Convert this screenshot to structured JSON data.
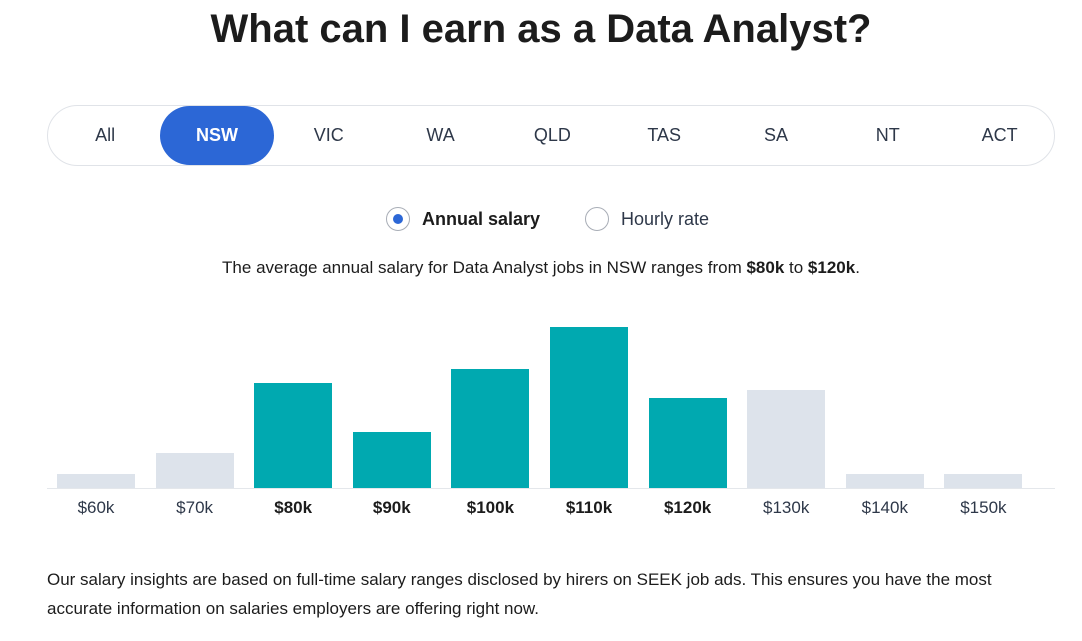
{
  "title": "What can I earn as a Data Analyst?",
  "tabs": [
    {
      "label": "All",
      "active": false
    },
    {
      "label": "NSW",
      "active": true
    },
    {
      "label": "VIC",
      "active": false
    },
    {
      "label": "WA",
      "active": false
    },
    {
      "label": "QLD",
      "active": false
    },
    {
      "label": "TAS",
      "active": false
    },
    {
      "label": "SA",
      "active": false
    },
    {
      "label": "NT",
      "active": false
    },
    {
      "label": "ACT",
      "active": false
    }
  ],
  "rate_options": {
    "annual_label": "Annual salary",
    "annual_selected": true,
    "hourly_label": "Hourly rate",
    "hourly_selected": false
  },
  "summary": {
    "prefix": "The average annual salary for Data Analyst jobs in NSW ranges from ",
    "low": "$80k",
    "middle": " to ",
    "high": "$120k",
    "suffix": "."
  },
  "colors": {
    "highlight": "#00a9b0",
    "muted": "#dde3eb",
    "accent": "#2c67d6"
  },
  "chart_data": {
    "type": "bar",
    "categories": [
      "$60k",
      "$70k",
      "$80k",
      "$90k",
      "$100k",
      "$110k",
      "$120k",
      "$130k",
      "$140k",
      "$150k"
    ],
    "values": [
      9,
      22,
      65,
      35,
      74,
      100,
      56,
      61,
      9,
      9
    ],
    "highlighted": [
      false,
      false,
      true,
      true,
      true,
      true,
      true,
      false,
      false,
      false
    ],
    "ylim": [
      0,
      100
    ],
    "grid": false,
    "legend": "none"
  },
  "footer": "Our salary insights are based on full-time salary ranges disclosed by hirers on SEEK job ads. This ensures you have the most accurate information on salaries employers are offering right now."
}
